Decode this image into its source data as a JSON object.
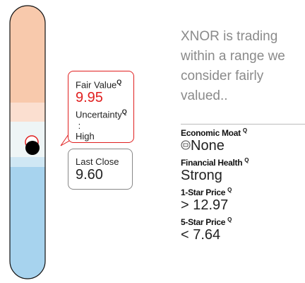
{
  "summary": "XNOR is trading within a range we consider fairly valued..",
  "fair_value": {
    "label": "Fair Value",
    "q": "Q",
    "value": "9.95",
    "uncertainty_label": "Uncertainty",
    "uncertainty_q": "Q",
    "colon": ":",
    "uncertainty": "High"
  },
  "last_close": {
    "label": "Last Close",
    "value": "9.60"
  },
  "metrics": [
    {
      "label": "Economic Moat",
      "q": "Q",
      "value": "None"
    },
    {
      "label": "Financial Health",
      "q": "Q",
      "value": "Strong"
    },
    {
      "label": "1-Star Price",
      "q": "Q",
      "value": "> 12.97"
    },
    {
      "label": "5-Star Price",
      "q": "Q",
      "value": "< 7.64"
    }
  ]
}
